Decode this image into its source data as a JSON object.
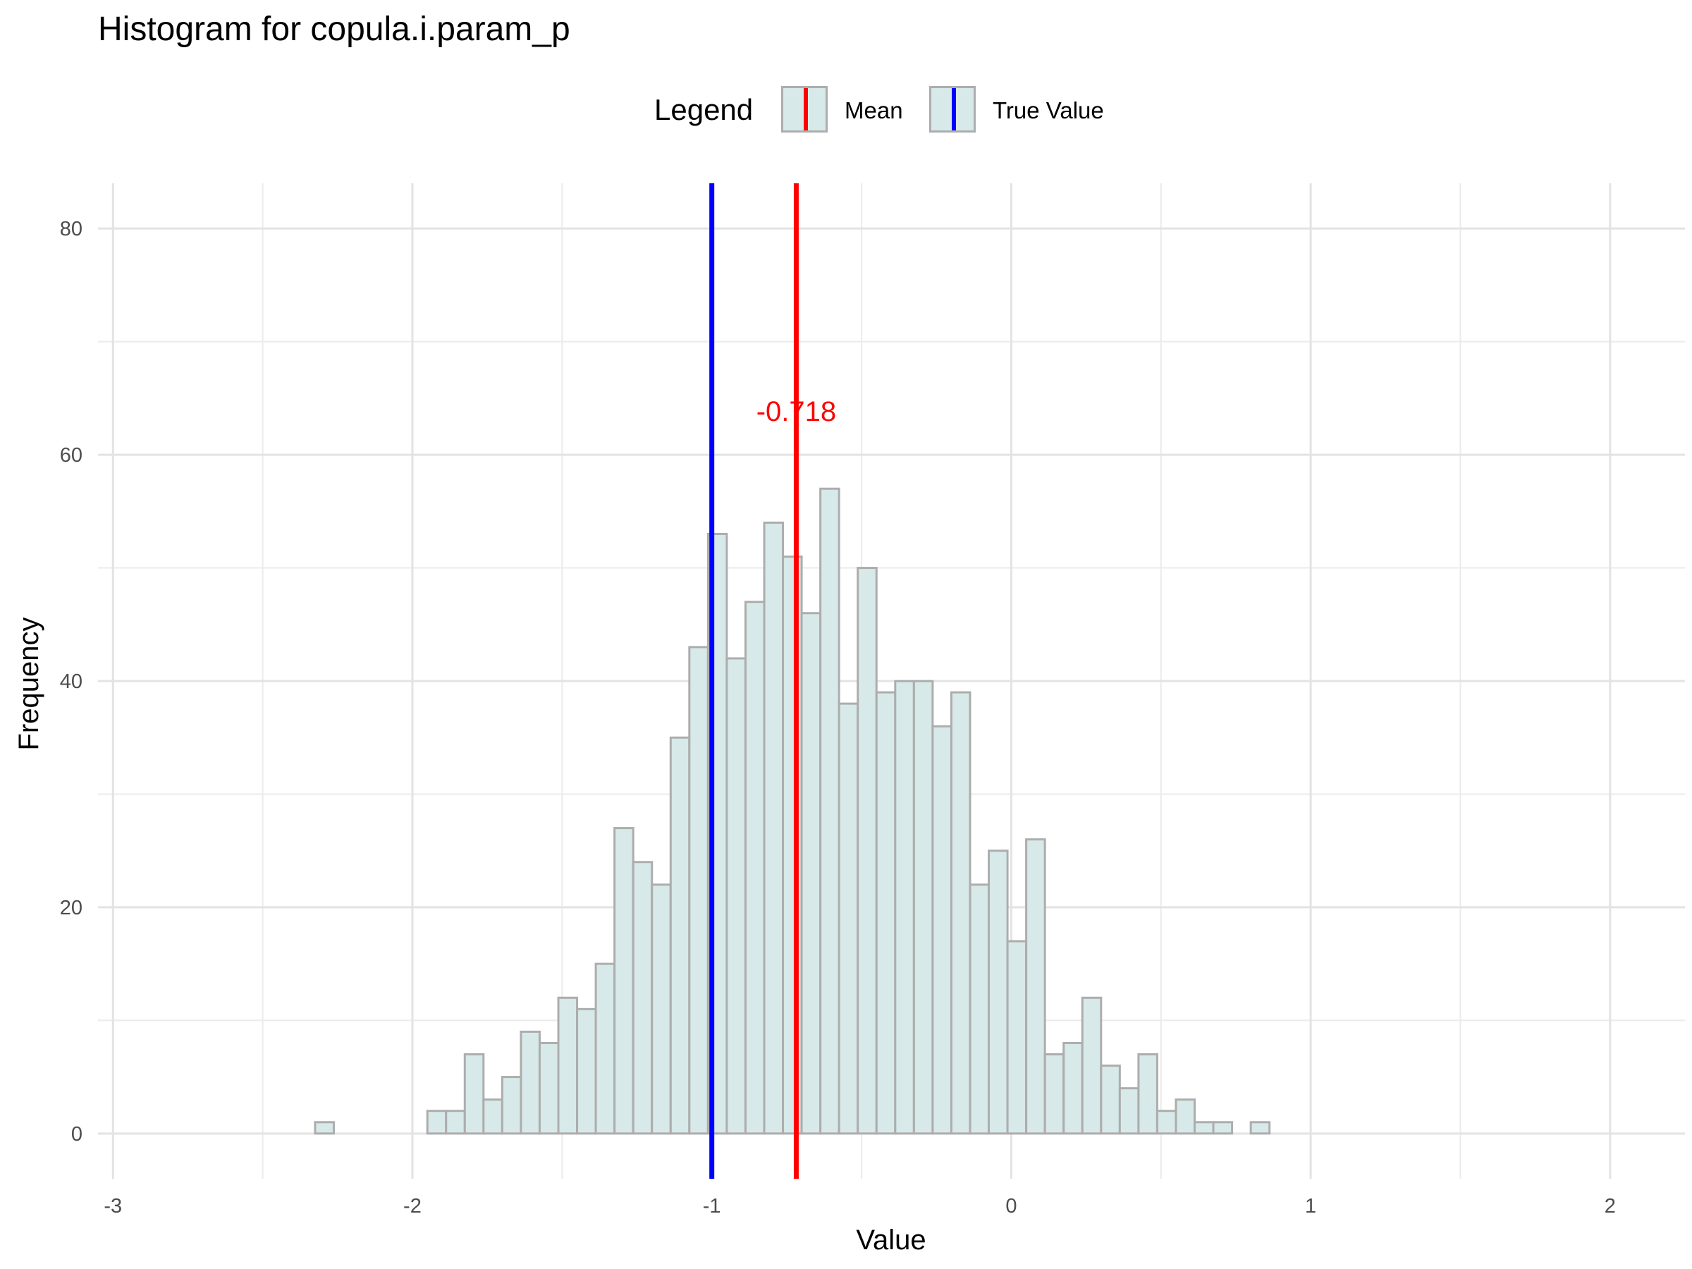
{
  "chart_data": {
    "type": "histogram",
    "title": "Histogram for copula.i.param_p",
    "xlabel": "Value",
    "ylabel": "Frequency",
    "xlim": [
      -3.05,
      2.25
    ],
    "ylim": [
      -4,
      84
    ],
    "x_ticks": [
      -3,
      -2,
      -1,
      0,
      1,
      2
    ],
    "x_tick_labels": [
      "-3",
      "-2",
      "-1",
      "0",
      "1",
      "2"
    ],
    "y_ticks": [
      0,
      20,
      40,
      60,
      80
    ],
    "y_tick_labels": [
      "0",
      "20",
      "40",
      "60",
      "80"
    ],
    "grid": true,
    "bin_start": -2.95,
    "bin_width": 0.0625,
    "counts": [
      0,
      0,
      0,
      0,
      0,
      0,
      0,
      0,
      0,
      0,
      1,
      0,
      0,
      0,
      0,
      0,
      2,
      2,
      7,
      3,
      5,
      9,
      8,
      12,
      11,
      15,
      27,
      24,
      22,
      35,
      43,
      53,
      42,
      47,
      54,
      51,
      46,
      57,
      38,
      50,
      39,
      40,
      40,
      36,
      39,
      22,
      25,
      17,
      26,
      7,
      8,
      12,
      6,
      4,
      7,
      2,
      3,
      1,
      1,
      0,
      1,
      0,
      0,
      0,
      0,
      0,
      0,
      0,
      0,
      0,
      0,
      0,
      0,
      0,
      0,
      0,
      0,
      0,
      0
    ],
    "bar_fill": "#d7e9e8",
    "bar_stroke": "#adadad",
    "mean": -0.718,
    "true_value": -1,
    "mean_label": "-0.718",
    "mean_color": "#ff0000",
    "true_value_color": "#0000ff",
    "legend": {
      "title": "Legend",
      "position": "top",
      "entries": [
        {
          "label": "Mean",
          "color": "#ff0000"
        },
        {
          "label": "True Value",
          "color": "#0000ff"
        }
      ]
    }
  }
}
